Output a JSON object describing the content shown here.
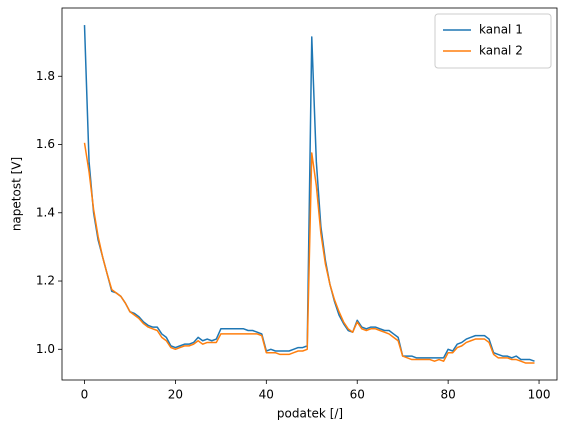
{
  "chart_data": {
    "type": "line",
    "xlabel": "podatek [/]",
    "ylabel": "napetost [V]",
    "x": [
      0,
      1,
      2,
      3,
      4,
      5,
      6,
      7,
      8,
      9,
      10,
      11,
      12,
      13,
      14,
      15,
      16,
      17,
      18,
      19,
      20,
      21,
      22,
      23,
      24,
      25,
      26,
      27,
      28,
      29,
      30,
      31,
      32,
      33,
      34,
      35,
      36,
      37,
      38,
      39,
      40,
      41,
      42,
      43,
      44,
      45,
      46,
      47,
      48,
      49,
      50,
      51,
      52,
      53,
      54,
      55,
      56,
      57,
      58,
      59,
      60,
      61,
      62,
      63,
      64,
      65,
      66,
      67,
      68,
      69,
      70,
      71,
      72,
      73,
      74,
      75,
      76,
      77,
      78,
      79,
      80,
      81,
      82,
      83,
      84,
      85,
      86,
      87,
      88,
      89,
      90,
      91,
      92,
      93,
      94,
      95,
      96,
      97,
      98,
      99
    ],
    "series": [
      {
        "name": "kanal 1",
        "color": "#1f77b4",
        "values": [
          1.95,
          1.55,
          1.4,
          1.32,
          1.27,
          1.22,
          1.17,
          1.165,
          1.155,
          1.135,
          1.11,
          1.105,
          1.095,
          1.08,
          1.07,
          1.065,
          1.065,
          1.045,
          1.035,
          1.01,
          1.005,
          1.01,
          1.015,
          1.015,
          1.02,
          1.035,
          1.025,
          1.03,
          1.025,
          1.03,
          1.06,
          1.06,
          1.06,
          1.06,
          1.06,
          1.06,
          1.055,
          1.055,
          1.05,
          1.045,
          0.995,
          1.0,
          0.995,
          0.995,
          0.995,
          0.995,
          1.0,
          1.005,
          1.005,
          1.01,
          1.915,
          1.55,
          1.36,
          1.26,
          1.19,
          1.14,
          1.1,
          1.075,
          1.055,
          1.05,
          1.085,
          1.065,
          1.06,
          1.065,
          1.065,
          1.06,
          1.055,
          1.055,
          1.045,
          1.035,
          0.98,
          0.98,
          0.98,
          0.975,
          0.975,
          0.975,
          0.975,
          0.975,
          0.975,
          0.975,
          1.0,
          0.995,
          1.015,
          1.02,
          1.03,
          1.035,
          1.04,
          1.04,
          1.04,
          1.03,
          0.99,
          0.985,
          0.98,
          0.98,
          0.975,
          0.98,
          0.97,
          0.97,
          0.97,
          0.965
        ]
      },
      {
        "name": "kanal 2",
        "color": "#ff7f0e",
        "values": [
          1.605,
          1.52,
          1.41,
          1.33,
          1.27,
          1.22,
          1.175,
          1.165,
          1.155,
          1.135,
          1.11,
          1.1,
          1.09,
          1.075,
          1.065,
          1.06,
          1.055,
          1.035,
          1.025,
          1.005,
          1.0,
          1.005,
          1.01,
          1.01,
          1.015,
          1.025,
          1.015,
          1.02,
          1.02,
          1.02,
          1.045,
          1.045,
          1.045,
          1.045,
          1.045,
          1.045,
          1.045,
          1.045,
          1.045,
          1.04,
          0.99,
          0.99,
          0.99,
          0.985,
          0.985,
          0.985,
          0.99,
          0.995,
          0.995,
          1.0,
          1.575,
          1.48,
          1.34,
          1.25,
          1.19,
          1.145,
          1.11,
          1.08,
          1.06,
          1.05,
          1.08,
          1.06,
          1.055,
          1.06,
          1.06,
          1.055,
          1.05,
          1.045,
          1.035,
          1.025,
          0.98,
          0.975,
          0.97,
          0.97,
          0.97,
          0.97,
          0.97,
          0.965,
          0.97,
          0.965,
          0.99,
          0.99,
          1.005,
          1.01,
          1.02,
          1.025,
          1.03,
          1.03,
          1.03,
          1.02,
          0.985,
          0.975,
          0.975,
          0.975,
          0.97,
          0.97,
          0.965,
          0.96,
          0.96,
          0.96
        ]
      }
    ],
    "xlim": [
      -4.95,
      103.95
    ],
    "xticks": [
      0,
      20,
      40,
      60,
      80,
      100
    ],
    "ylim": [
      0.91,
      2.0
    ],
    "yticks": [
      {
        "value": 1.0,
        "label": "1.0"
      },
      {
        "value": 1.2,
        "label": "1.2"
      },
      {
        "value": 1.4,
        "label": "1.4"
      },
      {
        "value": 1.6,
        "label": "1.6"
      },
      {
        "value": 1.8,
        "label": "1.8"
      }
    ],
    "legend": "upper right"
  }
}
